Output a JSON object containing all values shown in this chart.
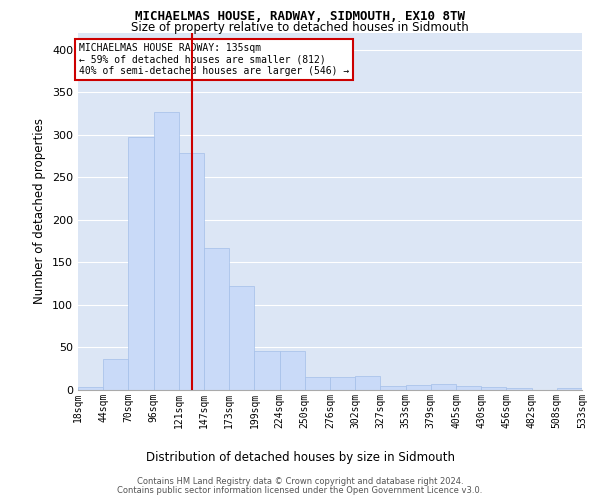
{
  "title1": "MICHAELMAS HOUSE, RADWAY, SIDMOUTH, EX10 8TW",
  "title2": "Size of property relative to detached houses in Sidmouth",
  "xlabel": "Distribution of detached houses by size in Sidmouth",
  "ylabel": "Number of detached properties",
  "bar_labels": [
    "18sqm",
    "44sqm",
    "70sqm",
    "96sqm",
    "121sqm",
    "147sqm",
    "173sqm",
    "199sqm",
    "224sqm",
    "250sqm",
    "276sqm",
    "302sqm",
    "327sqm",
    "353sqm",
    "379sqm",
    "405sqm",
    "430sqm",
    "456sqm",
    "482sqm",
    "508sqm",
    "533sqm"
  ],
  "bar_values": [
    4,
    37,
    297,
    327,
    278,
    167,
    122,
    46,
    46,
    15,
    15,
    17,
    5,
    6,
    7,
    5,
    3,
    2,
    0,
    2
  ],
  "bar_color": "#c9daf8",
  "bar_edge_color": "#a4bfe8",
  "vline_color": "#cc0000",
  "ann_line1": "MICHAELMAS HOUSE RADWAY: 135sqm",
  "ann_line2": "← 59% of detached houses are smaller (812)",
  "ann_line3": "40% of semi-detached houses are larger (546) →",
  "ann_box_facecolor": "#ffffff",
  "ann_box_edgecolor": "#cc0000",
  "ylim": [
    0,
    420
  ],
  "yticks": [
    0,
    50,
    100,
    150,
    200,
    250,
    300,
    350,
    400
  ],
  "plot_bg": "#dce6f5",
  "grid_color": "#ffffff",
  "footer1": "Contains HM Land Registry data © Crown copyright and database right 2024.",
  "footer2": "Contains public sector information licensed under the Open Government Licence v3.0."
}
